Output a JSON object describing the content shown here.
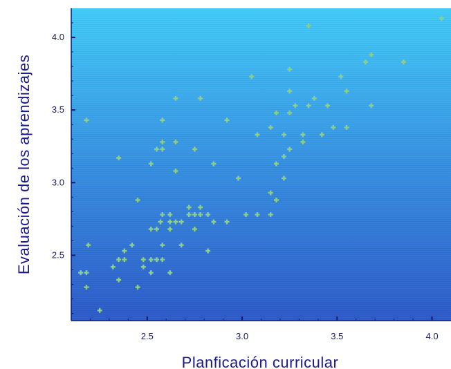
{
  "chart_data": {
    "type": "scatter",
    "title": "",
    "xlabel": "Planficación curricular",
    "ylabel": "Evaluación de los aprendizajes",
    "xlim": [
      2.1,
      4.1
    ],
    "ylim": [
      2.05,
      4.2
    ],
    "xticks": [
      "2.5",
      "3.0",
      "3.5",
      "4.0"
    ],
    "yticks": [
      "2.5",
      "3.0",
      "3.5",
      "4.0"
    ],
    "grid": false,
    "colors": {
      "plot_top": "#40c8f8",
      "plot_bottom": "#2f5fcc",
      "marker": "#8ccf8a",
      "axis": "#0b1a6a"
    },
    "series": [
      {
        "name": "",
        "points": [
          [
            2.15,
            2.38
          ],
          [
            2.18,
            2.38
          ],
          [
            2.18,
            2.28
          ],
          [
            2.19,
            2.57
          ],
          [
            2.18,
            3.43
          ],
          [
            2.25,
            2.12
          ],
          [
            2.32,
            2.42
          ],
          [
            2.35,
            2.47
          ],
          [
            2.35,
            2.33
          ],
          [
            2.35,
            3.17
          ],
          [
            2.38,
            2.53
          ],
          [
            2.38,
            2.47
          ],
          [
            2.42,
            2.57
          ],
          [
            2.45,
            2.88
          ],
          [
            2.45,
            2.28
          ],
          [
            2.48,
            2.47
          ],
          [
            2.48,
            2.42
          ],
          [
            2.52,
            2.47
          ],
          [
            2.52,
            2.38
          ],
          [
            2.52,
            2.68
          ],
          [
            2.52,
            3.13
          ],
          [
            2.55,
            2.47
          ],
          [
            2.55,
            2.68
          ],
          [
            2.55,
            3.23
          ],
          [
            2.57,
            2.73
          ],
          [
            2.58,
            2.47
          ],
          [
            2.58,
            2.57
          ],
          [
            2.58,
            2.78
          ],
          [
            2.58,
            3.28
          ],
          [
            2.58,
            3.23
          ],
          [
            2.58,
            3.43
          ],
          [
            2.62,
            2.38
          ],
          [
            2.62,
            2.68
          ],
          [
            2.62,
            2.73
          ],
          [
            2.62,
            2.78
          ],
          [
            2.65,
            2.73
          ],
          [
            2.65,
            3.08
          ],
          [
            2.65,
            3.28
          ],
          [
            2.65,
            3.58
          ],
          [
            2.68,
            2.73
          ],
          [
            2.68,
            2.57
          ],
          [
            2.72,
            2.78
          ],
          [
            2.72,
            2.83
          ],
          [
            2.75,
            2.78
          ],
          [
            2.75,
            2.68
          ],
          [
            2.75,
            3.23
          ],
          [
            2.78,
            2.78
          ],
          [
            2.78,
            2.83
          ],
          [
            2.78,
            3.58
          ],
          [
            2.82,
            2.78
          ],
          [
            2.82,
            2.53
          ],
          [
            2.85,
            2.73
          ],
          [
            2.85,
            3.13
          ],
          [
            2.92,
            2.73
          ],
          [
            2.92,
            3.43
          ],
          [
            2.98,
            3.03
          ],
          [
            3.02,
            2.78
          ],
          [
            3.05,
            3.73
          ],
          [
            3.08,
            2.78
          ],
          [
            3.08,
            3.33
          ],
          [
            3.15,
            2.78
          ],
          [
            3.15,
            2.93
          ],
          [
            3.15,
            3.38
          ],
          [
            3.18,
            2.88
          ],
          [
            3.18,
            3.13
          ],
          [
            3.18,
            3.48
          ],
          [
            3.22,
            3.03
          ],
          [
            3.22,
            3.18
          ],
          [
            3.22,
            3.33
          ],
          [
            3.25,
            3.23
          ],
          [
            3.25,
            3.48
          ],
          [
            3.25,
            3.63
          ],
          [
            3.25,
            3.78
          ],
          [
            3.28,
            3.53
          ],
          [
            3.32,
            3.28
          ],
          [
            3.32,
            3.33
          ],
          [
            3.35,
            3.53
          ],
          [
            3.35,
            4.08
          ],
          [
            3.38,
            3.58
          ],
          [
            3.42,
            3.33
          ],
          [
            3.45,
            3.53
          ],
          [
            3.48,
            3.38
          ],
          [
            3.52,
            3.73
          ],
          [
            3.55,
            3.38
          ],
          [
            3.55,
            3.63
          ],
          [
            3.65,
            3.83
          ],
          [
            3.68,
            3.88
          ],
          [
            3.68,
            3.53
          ],
          [
            3.85,
            3.83
          ],
          [
            4.05,
            4.13
          ]
        ]
      }
    ]
  }
}
